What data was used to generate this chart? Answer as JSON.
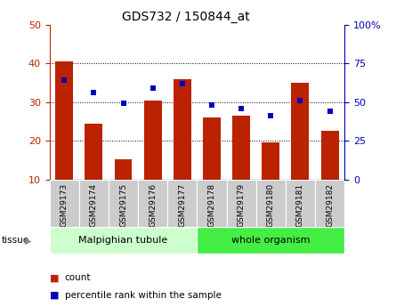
{
  "title": "GDS732 / 150844_at",
  "categories": [
    "GSM29173",
    "GSM29174",
    "GSM29175",
    "GSM29176",
    "GSM29177",
    "GSM29178",
    "GSM29179",
    "GSM29180",
    "GSM29181",
    "GSM29182"
  ],
  "count_values": [
    40.5,
    24.5,
    15.3,
    30.5,
    36.0,
    26.0,
    26.5,
    19.5,
    35.0,
    22.5
  ],
  "percentile_values": [
    64,
    56,
    49,
    59,
    62,
    48,
    46,
    41,
    51,
    44
  ],
  "count_color": "#bb2200",
  "percentile_color": "#0000bb",
  "ylim_left": [
    10,
    50
  ],
  "ylim_right": [
    0,
    100
  ],
  "yticks_left": [
    10,
    20,
    30,
    40,
    50
  ],
  "yticks_right": [
    0,
    25,
    50,
    75,
    100
  ],
  "ytick_labels_right": [
    "0",
    "25",
    "50",
    "75",
    "100%"
  ],
  "tissue_groups": [
    {
      "label": "Malpighian tubule",
      "start": 0,
      "end": 5,
      "color": "#ccffcc"
    },
    {
      "label": "whole organism",
      "start": 5,
      "end": 10,
      "color": "#44ee44"
    }
  ],
  "legend_count_label": "count",
  "legend_percentile_label": "percentile rank within the sample",
  "tissue_label": "tissue",
  "bar_width": 0.6
}
